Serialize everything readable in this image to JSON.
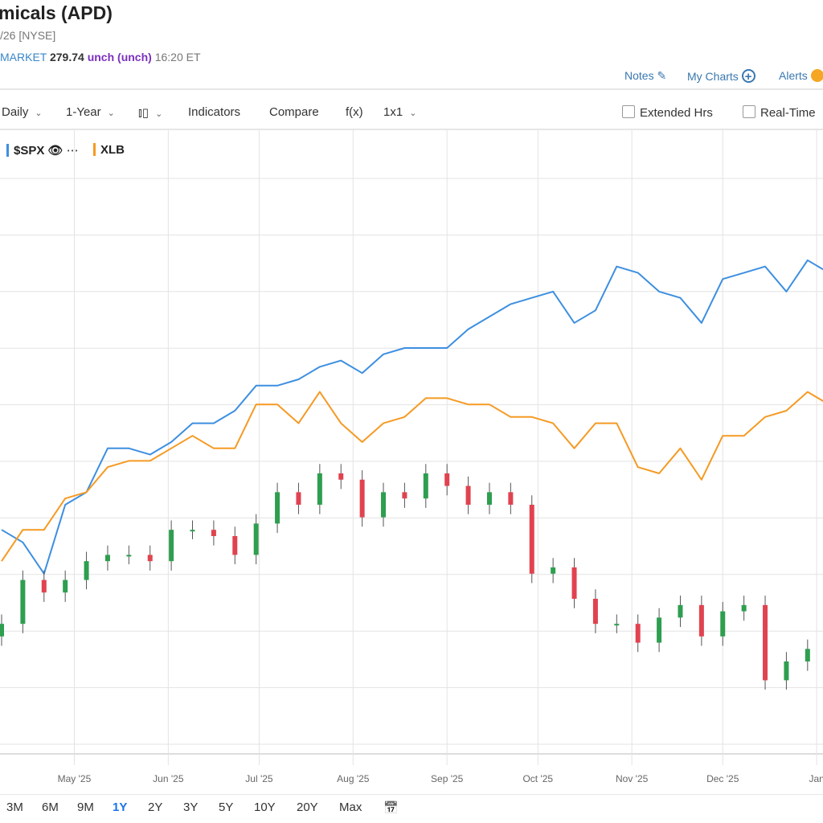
{
  "header": {
    "title": "micals (APD)",
    "exchange_line": "/26 [NYSE]",
    "session": "MARKET",
    "price": "279.74",
    "change": "unch (unch)",
    "time": "16:20 ET"
  },
  "links": {
    "notes": "Notes",
    "my_charts": "My Charts",
    "alerts": "Alerts"
  },
  "toolbar": {
    "interval": "Daily",
    "period": "1-Year",
    "chart_type_icon": "candlestick-icon",
    "indicators": "Indicators",
    "compare": "Compare",
    "fx": "f(x)",
    "layout": "1x1",
    "extended_hrs": "Extended Hrs",
    "real_time": "Real-Time"
  },
  "legend": {
    "spx": "$SPX",
    "xlb": "XLB"
  },
  "ranges": [
    "3M",
    "6M",
    "9M",
    "1Y",
    "2Y",
    "3Y",
    "5Y",
    "10Y",
    "20Y",
    "Max"
  ],
  "active_range": "1Y",
  "colors": {
    "spx": "#3d8fe0",
    "xlb": "#f59a23",
    "up": "#2e9e4f",
    "down": "#e0434f",
    "link": "#3a78b0",
    "active": "#1a73e8"
  },
  "chart_data": {
    "type": "line",
    "x_tick_labels": [
      "May '25",
      "Jun '25",
      "Jul '25",
      "Aug '25",
      "Sep '25",
      "Oct '25",
      "Nov '25",
      "Dec '25",
      "Jan"
    ],
    "x_tick_dates": [
      "2025-05-01",
      "2025-06-01",
      "2025-07-01",
      "2025-08-01",
      "2025-09-01",
      "2025-10-01",
      "2025-11-01",
      "2025-12-01",
      "2026-01-01"
    ],
    "x": [
      "2025-04-07",
      "2025-04-14",
      "2025-04-21",
      "2025-04-28",
      "2025-05-05",
      "2025-05-12",
      "2025-05-19",
      "2025-05-26",
      "2025-06-02",
      "2025-06-09",
      "2025-06-16",
      "2025-06-23",
      "2025-06-30",
      "2025-07-07",
      "2025-07-14",
      "2025-07-21",
      "2025-07-28",
      "2025-08-04",
      "2025-08-11",
      "2025-08-18",
      "2025-08-25",
      "2025-09-01",
      "2025-09-08",
      "2025-09-15",
      "2025-09-22",
      "2025-09-29",
      "2025-10-06",
      "2025-10-13",
      "2025-10-20",
      "2025-10-27",
      "2025-11-03",
      "2025-11-10",
      "2025-11-17",
      "2025-11-24",
      "2025-12-01",
      "2025-12-08",
      "2025-12-15",
      "2025-12-22",
      "2025-12-29",
      "2026-01-05"
    ],
    "ylim": [
      0,
      100
    ],
    "grid": true,
    "legend_position": "top-left",
    "series": [
      {
        "name": "$SPX",
        "kind": "line",
        "values": [
          36,
          34,
          29,
          40,
          42,
          49,
          49,
          48,
          50,
          53,
          53,
          55,
          59,
          59,
          60,
          62,
          63,
          61,
          64,
          65,
          65,
          65,
          68,
          70,
          72,
          73,
          74,
          69,
          71,
          78,
          77,
          74,
          73,
          69,
          76,
          77,
          78,
          74,
          79,
          77
        ]
      },
      {
        "name": "XLB",
        "kind": "line",
        "values": [
          31,
          36,
          36,
          41,
          42,
          46,
          47,
          47,
          49,
          51,
          49,
          49,
          56,
          56,
          53,
          58,
          53,
          50,
          53,
          54,
          57,
          57,
          56,
          56,
          54,
          54,
          53,
          49,
          53,
          53,
          46,
          45,
          49,
          44,
          51,
          51,
          54,
          55,
          58,
          56
        ]
      },
      {
        "name": "APD",
        "kind": "candlestick",
        "values": [
          21,
          28,
          26,
          28,
          31,
          32,
          32,
          31,
          36,
          36,
          35,
          32,
          37,
          42,
          40,
          45,
          44,
          38,
          42,
          41,
          45,
          43,
          40,
          42,
          40,
          29,
          30,
          25,
          21,
          21,
          18,
          22,
          24,
          19,
          23,
          24,
          12,
          15,
          17,
          18
        ]
      }
    ]
  }
}
